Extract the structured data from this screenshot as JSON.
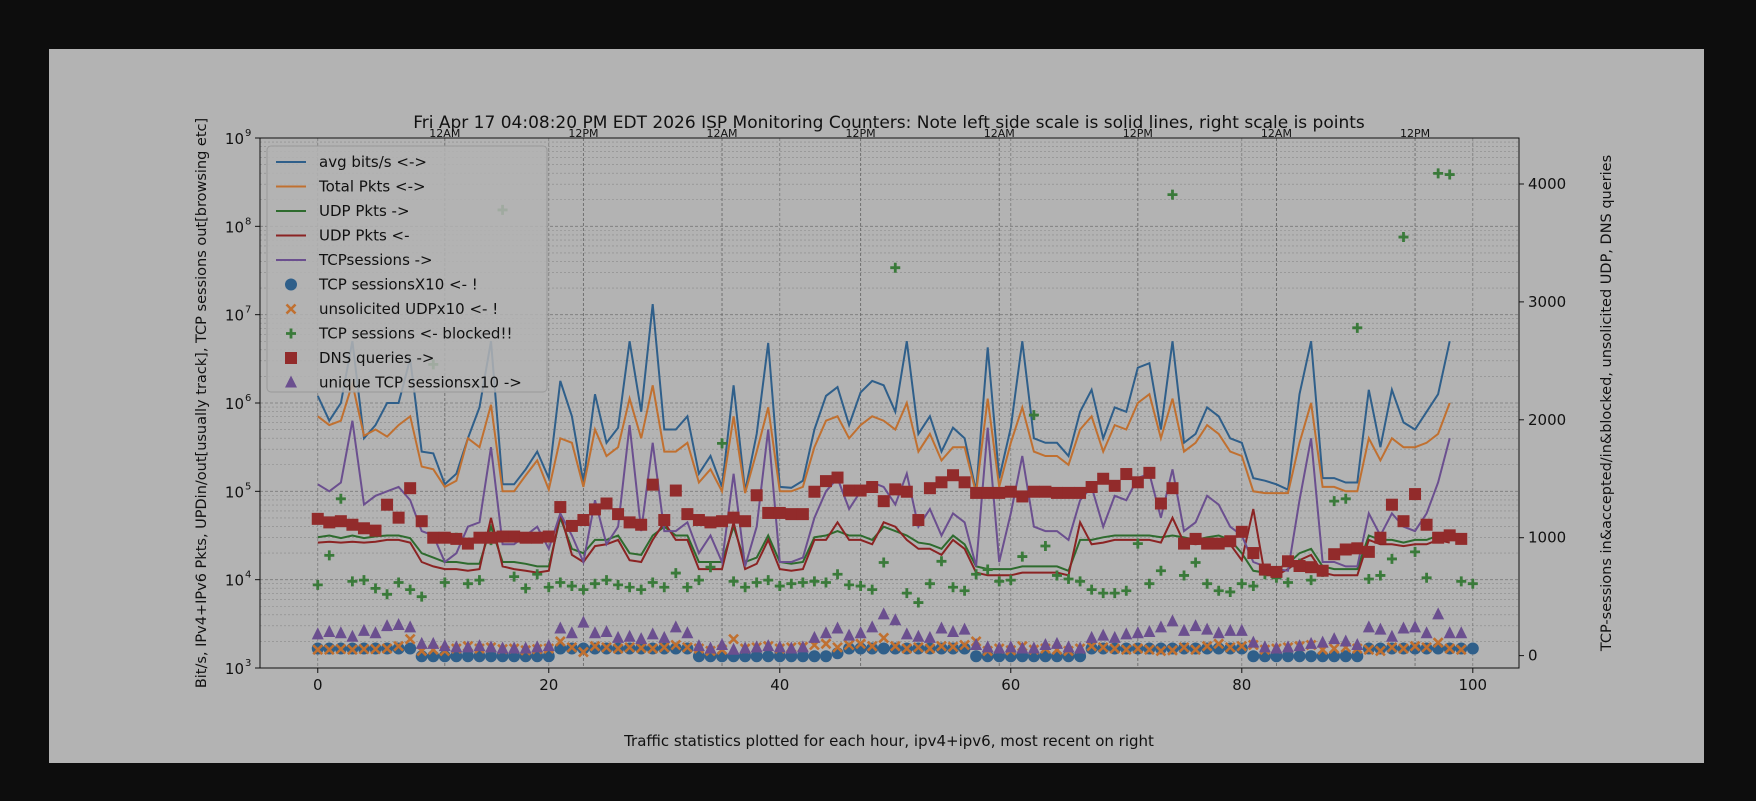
{
  "chart_data": {
    "type": "line+scatter",
    "title": "Fri Apr 17 04:08:20 PM EDT 2026 ISP Monitoring Counters: Note left side scale is solid lines, right scale is points",
    "xlabel": "Traffic statistics plotted for each hour, ipv4+ipv6,  most recent on right",
    "ylabel_left": "Bit/s, IPv4+IPv6 Pkts, UPDin/out[usually track], TCP sessions out[browsing etc]",
    "ylabel_right": "TCP-sessions in&accepted/in&blocked, unsolicited UDP, DNS queries",
    "xlim": [
      -5,
      104
    ],
    "ylim_left_log10": [
      3,
      9
    ],
    "ylim_right": [
      -105,
      4390
    ],
    "x_ticks": [
      0,
      20,
      40,
      60,
      80,
      100
    ],
    "x_tick_labels": [
      "0",
      "20",
      "40",
      "60",
      "80",
      "100"
    ],
    "y_left_ticks": [
      3,
      4,
      5,
      6,
      7,
      8,
      9
    ],
    "y_left_tick_labels": [
      "10",
      "10",
      "10",
      "10",
      "10",
      "10",
      "10"
    ],
    "y_left_tick_exps": [
      "3",
      "4",
      "5",
      "6",
      "7",
      "8",
      "9"
    ],
    "y_right_ticks": [
      0,
      1000,
      2000,
      3000,
      4000
    ],
    "y_right_tick_labels": [
      "0",
      "1000",
      "2000",
      "3000",
      "4000"
    ],
    "top_markers": [
      {
        "x": 11,
        "label": "12AM"
      },
      {
        "x": 23,
        "label": "12PM"
      },
      {
        "x": 35,
        "label": "12AM"
      },
      {
        "x": 47,
        "label": "12PM"
      },
      {
        "x": 59,
        "label": "12AM"
      },
      {
        "x": 71,
        "label": "12PM"
      },
      {
        "x": 83,
        "label": "12AM"
      },
      {
        "x": 95,
        "label": "12PM"
      }
    ],
    "line_series": [
      {
        "name": "avg bits/s <->",
        "color": "#2f5f8a",
        "log10": [
          6.08,
          5.8,
          6.0,
          6.7,
          5.6,
          5.75,
          6.0,
          6.0,
          6.5,
          5.45,
          5.43,
          5.08,
          5.2,
          5.6,
          5.95,
          6.7,
          5.08,
          5.08,
          5.25,
          5.45,
          5.15,
          6.25,
          5.85,
          5.1,
          6.1,
          5.55,
          5.72,
          6.7,
          5.9,
          7.12,
          5.7,
          5.7,
          5.85,
          5.2,
          5.4,
          5.05,
          6.2,
          5.0,
          5.65,
          6.68,
          5.05,
          5.04,
          5.12,
          5.7,
          6.08,
          6.18,
          5.75,
          6.12,
          6.25,
          6.2,
          5.9,
          6.7,
          5.65,
          5.85,
          5.45,
          5.72,
          5.6,
          5.0,
          6.63,
          5.15,
          5.72,
          6.7,
          5.6,
          5.55,
          5.55,
          5.4,
          5.9,
          6.15,
          5.6,
          5.95,
          5.9,
          6.4,
          6.45,
          5.7,
          6.7,
          5.55,
          5.65,
          5.95,
          5.85,
          5.6,
          5.55,
          5.15,
          5.12,
          5.08,
          5.02,
          6.1,
          6.7,
          5.15,
          5.15,
          5.1,
          5.1,
          6.15,
          5.5,
          6.15,
          5.78,
          5.7,
          5.9,
          6.1,
          6.7
        ]
      },
      {
        "name": "Total Pkts <->",
        "color": "#c07030",
        "log10": [
          5.85,
          5.75,
          5.8,
          6.22,
          5.63,
          5.7,
          5.62,
          5.75,
          5.85,
          5.28,
          5.25,
          5.05,
          5.12,
          5.6,
          5.5,
          5.98,
          5.0,
          5.0,
          5.18,
          5.35,
          5.02,
          5.6,
          5.55,
          5.05,
          5.7,
          5.4,
          5.5,
          6.05,
          5.6,
          6.2,
          5.45,
          5.45,
          5.55,
          5.1,
          5.25,
          5.0,
          5.85,
          4.98,
          5.45,
          5.95,
          5.0,
          5.0,
          5.05,
          5.5,
          5.8,
          5.85,
          5.6,
          5.75,
          5.85,
          5.8,
          5.7,
          6.0,
          5.45,
          5.65,
          5.35,
          5.5,
          5.5,
          4.98,
          6.05,
          5.05,
          5.55,
          5.95,
          5.45,
          5.4,
          5.4,
          5.3,
          5.7,
          5.85,
          5.45,
          5.75,
          5.7,
          6.0,
          6.1,
          5.6,
          6.05,
          5.45,
          5.55,
          5.75,
          5.65,
          5.45,
          5.4,
          5.0,
          4.98,
          4.98,
          4.98,
          5.55,
          6.0,
          5.05,
          5.05,
          5.0,
          5.0,
          5.6,
          5.35,
          5.6,
          5.5,
          5.5,
          5.55,
          5.65,
          6.0
        ]
      },
      {
        "name": "UDP Pkts ->",
        "color": "#2e6b2e",
        "log10": [
          4.48,
          4.5,
          4.47,
          4.5,
          4.47,
          4.49,
          4.5,
          4.5,
          4.47,
          4.3,
          4.25,
          4.2,
          4.2,
          4.18,
          4.18,
          4.6,
          4.2,
          4.2,
          4.18,
          4.15,
          4.15,
          4.7,
          4.35,
          4.3,
          4.45,
          4.45,
          4.5,
          4.3,
          4.28,
          4.5,
          4.6,
          4.5,
          4.5,
          4.2,
          4.2,
          4.2,
          4.6,
          4.2,
          4.25,
          4.5,
          4.2,
          4.18,
          4.2,
          4.48,
          4.5,
          4.55,
          4.5,
          4.5,
          4.45,
          4.6,
          4.55,
          4.5,
          4.42,
          4.4,
          4.35,
          4.5,
          4.4,
          4.15,
          4.12,
          4.12,
          4.12,
          4.15,
          4.15,
          4.15,
          4.15,
          4.1,
          4.45,
          4.45,
          4.48,
          4.5,
          4.5,
          4.5,
          4.5,
          4.48,
          4.5,
          4.48,
          4.45,
          4.48,
          4.5,
          4.45,
          4.3,
          4.1,
          4.08,
          4.12,
          4.18,
          4.3,
          4.35,
          4.15,
          4.12,
          4.12,
          4.12,
          4.5,
          4.45,
          4.45,
          4.42,
          4.45,
          4.45,
          4.5,
          4.48
        ]
      },
      {
        "name": "UDP Pkts <-",
        "color": "#8b2323",
        "log10": [
          4.42,
          4.43,
          4.42,
          4.43,
          4.42,
          4.43,
          4.45,
          4.45,
          4.42,
          4.2,
          4.15,
          4.12,
          4.12,
          4.1,
          4.12,
          4.7,
          4.15,
          4.12,
          4.1,
          4.08,
          4.1,
          4.75,
          4.28,
          4.2,
          4.38,
          4.4,
          4.45,
          4.22,
          4.2,
          4.45,
          4.65,
          4.45,
          4.45,
          4.12,
          4.12,
          4.12,
          4.65,
          4.12,
          4.18,
          4.45,
          4.12,
          4.1,
          4.12,
          4.45,
          4.45,
          4.65,
          4.45,
          4.45,
          4.4,
          4.65,
          4.6,
          4.45,
          4.35,
          4.35,
          4.28,
          4.45,
          4.35,
          4.08,
          4.05,
          4.05,
          4.05,
          4.08,
          4.08,
          4.08,
          4.08,
          4.05,
          4.65,
          4.4,
          4.42,
          4.45,
          4.45,
          4.45,
          4.45,
          4.42,
          4.7,
          4.42,
          4.4,
          4.42,
          4.45,
          4.4,
          4.22,
          4.8,
          4.05,
          4.05,
          4.12,
          4.22,
          4.28,
          4.08,
          4.05,
          4.05,
          4.05,
          4.45,
          4.4,
          4.4,
          4.38,
          4.4,
          4.4,
          4.45,
          4.42
        ]
      },
      {
        "name": "TCPsessions ->",
        "color": "#6b4f8f",
        "log10": [
          5.08,
          5.0,
          5.1,
          5.8,
          4.85,
          4.95,
          5.0,
          5.05,
          4.9,
          4.55,
          4.5,
          4.2,
          4.3,
          4.6,
          4.65,
          5.5,
          4.4,
          4.4,
          4.5,
          4.6,
          4.35,
          4.75,
          4.5,
          4.2,
          4.9,
          4.4,
          4.6,
          5.75,
          4.55,
          5.55,
          4.55,
          4.55,
          4.65,
          4.3,
          4.5,
          4.2,
          5.2,
          4.15,
          4.6,
          5.7,
          4.2,
          4.2,
          4.25,
          4.7,
          5.0,
          5.15,
          4.8,
          5.0,
          5.1,
          5.05,
          4.85,
          5.2,
          4.6,
          4.8,
          4.5,
          4.75,
          4.65,
          4.15,
          5.72,
          4.2,
          4.75,
          5.4,
          4.6,
          4.55,
          4.55,
          4.45,
          4.9,
          5.05,
          4.6,
          4.95,
          4.9,
          5.15,
          5.2,
          4.7,
          5.25,
          4.55,
          4.65,
          4.95,
          4.85,
          4.6,
          4.5,
          4.2,
          4.15,
          4.12,
          4.1,
          4.9,
          5.6,
          4.2,
          4.2,
          4.15,
          4.15,
          4.75,
          4.5,
          4.75,
          4.6,
          4.55,
          4.75,
          5.1,
          5.6
        ]
      }
    ],
    "point_series": [
      {
        "name": "TCP sessionsX10 <- !",
        "color": "#2f5f8a",
        "marker": "circle",
        "values": [
          60,
          60,
          60,
          60,
          60,
          60,
          60,
          60,
          60,
          -5,
          -5,
          -5,
          -5,
          -5,
          -5,
          -5,
          -5,
          -5,
          -5,
          -5,
          -5,
          60,
          60,
          60,
          60,
          60,
          60,
          60,
          60,
          60,
          60,
          60,
          60,
          -5,
          -5,
          -5,
          -5,
          -5,
          -5,
          -5,
          -5,
          -5,
          -5,
          -5,
          -5,
          20,
          60,
          60,
          60,
          60,
          60,
          60,
          60,
          60,
          60,
          60,
          60,
          -5,
          -5,
          -5,
          -5,
          -5,
          -5,
          -5,
          -5,
          -5,
          -5,
          60,
          60,
          60,
          60,
          60,
          60,
          60,
          60,
          60,
          60,
          60,
          60,
          60,
          60,
          -5,
          -5,
          -5,
          -5,
          -5,
          -5,
          -5,
          -5,
          -5,
          -5,
          60,
          60,
          60,
          60,
          60,
          60,
          60,
          60,
          60,
          60
        ]
      },
      {
        "name": "unsolicited UDPx10 <- !",
        "color": "#c07030",
        "marker": "x",
        "values": [
          50,
          50,
          55,
          50,
          55,
          55,
          60,
          80,
          140,
          40,
          50,
          40,
          60,
          80,
          60,
          70,
          55,
          60,
          45,
          55,
          60,
          120,
          70,
          30,
          80,
          70,
          60,
          70,
          65,
          60,
          70,
          90,
          70,
          60,
          40,
          50,
          140,
          60,
          70,
          80,
          60,
          70,
          75,
          90,
          100,
          70,
          90,
          100,
          80,
          150,
          80,
          60,
          70,
          60,
          80,
          75,
          90,
          120,
          40,
          60,
          45,
          80,
          50,
          60,
          50,
          40,
          60,
          80,
          70,
          60,
          50,
          60,
          50,
          40,
          45,
          70,
          50,
          80,
          100,
          70,
          80,
          90,
          50,
          60,
          70,
          80,
          90,
          50,
          60,
          70,
          60,
          50,
          40,
          70,
          60,
          80,
          70,
          110,
          60,
          50
        ]
      },
      {
        "name": "TCP sessions <- blocked!!",
        "color": "#3a7a3a",
        "marker": "plus",
        "values": [
          600,
          850,
          1330,
          630,
          640,
          570,
          520,
          620,
          560,
          500,
          2470,
          620,
          1000,
          610,
          640,
          980,
          3780,
          670,
          570,
          690,
          580,
          620,
          590,
          560,
          610,
          640,
          600,
          580,
          560,
          620,
          580,
          700,
          580,
          640,
          750,
          1800,
          630,
          580,
          620,
          640,
          590,
          610,
          620,
          630,
          620,
          690,
          600,
          590,
          560,
          790,
          3290,
          530,
          450,
          610,
          800,
          580,
          550,
          690,
          730,
          630,
          640,
          840,
          2040,
          930,
          680,
          650,
          630,
          560,
          530,
          530,
          550,
          950,
          610,
          720,
          3910,
          680,
          790,
          610,
          550,
          540,
          610,
          590,
          690,
          660,
          620,
          780,
          640,
          710,
          1310,
          1330,
          2780,
          650,
          680,
          820,
          3550,
          880,
          660,
          4090,
          4080,
          630,
          610
        ]
      },
      {
        "name": "DNS queries ->",
        "color": "#922b2b",
        "marker": "square",
        "values": [
          1160,
          1130,
          1140,
          1110,
          1080,
          1060,
          1280,
          1170,
          1420,
          1140,
          1000,
          1000,
          990,
          950,
          1000,
          1000,
          1010,
          1010,
          1000,
          1000,
          1010,
          1260,
          1100,
          1150,
          1240,
          1290,
          1200,
          1130,
          1110,
          1450,
          1150,
          1400,
          1200,
          1150,
          1130,
          1140,
          1170,
          1140,
          1360,
          1210,
          1210,
          1200,
          1200,
          1390,
          1480,
          1510,
          1400,
          1400,
          1430,
          1310,
          1410,
          1390,
          1150,
          1420,
          1470,
          1530,
          1470,
          1380,
          1380,
          1380,
          1390,
          1350,
          1390,
          1390,
          1380,
          1380,
          1380,
          1430,
          1500,
          1440,
          1540,
          1470,
          1550,
          1290,
          1420,
          950,
          990,
          950,
          950,
          970,
          1050,
          870,
          730,
          710,
          800,
          760,
          750,
          720,
          860,
          900,
          910,
          880,
          1000,
          1280,
          1140,
          1370,
          1110,
          1000,
          1020,
          990
        ]
      },
      {
        "name": "unique TCP sessionsx10 ->",
        "color": "#6b4f8f",
        "marker": "triangle",
        "values": [
          180,
          200,
          190,
          160,
          210,
          190,
          250,
          260,
          240,
          100,
          100,
          80,
          70,
          70,
          80,
          70,
          60,
          60,
          60,
          70,
          80,
          230,
          190,
          280,
          190,
          200,
          150,
          160,
          140,
          180,
          150,
          240,
          190,
          80,
          60,
          90,
          50,
          60,
          70,
          80,
          70,
          60,
          70,
          150,
          190,
          230,
          170,
          190,
          240,
          350,
          300,
          180,
          160,
          150,
          230,
          200,
          220,
          90,
          70,
          60,
          70,
          60,
          60,
          90,
          100,
          70,
          60,
          150,
          170,
          150,
          180,
          190,
          200,
          240,
          290,
          210,
          250,
          220,
          190,
          210,
          210,
          110,
          70,
          60,
          70,
          80,
          100,
          110,
          140,
          120,
          90,
          240,
          220,
          160,
          230,
          240,
          190,
          350,
          190,
          190
        ]
      }
    ],
    "legend": {
      "position": "upper-left",
      "entries": [
        "avg bits/s <->",
        "Total Pkts <->",
        "UDP Pkts ->",
        "UDP Pkts <-",
        "TCPsessions ->",
        "TCP sessionsX10 <- !",
        "unsolicited UDPx10 <- !",
        "TCP sessions <- blocked!!",
        "DNS queries ->",
        "unique TCP sessionsx10 ->"
      ]
    }
  }
}
